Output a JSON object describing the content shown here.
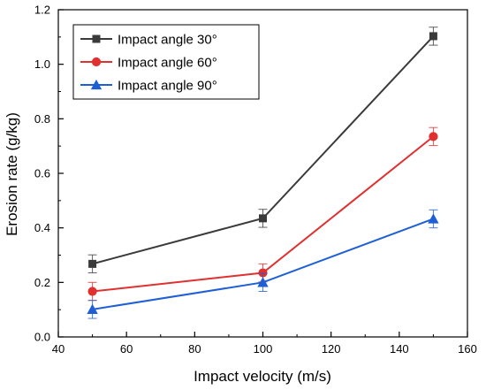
{
  "chart_data": {
    "type": "line",
    "title": "",
    "xlabel": "Impact velocity (m/s)",
    "ylabel": "Erosion rate (g/kg)",
    "xlim": [
      40,
      160
    ],
    "ylim": [
      0.0,
      1.2
    ],
    "xticks": [
      "40",
      "60",
      "80",
      "100",
      "120",
      "140",
      "160"
    ],
    "yticks": [
      "0.0",
      "0.2",
      "0.4",
      "0.6",
      "0.8",
      "1.0",
      "1.2"
    ],
    "grid": false,
    "legend_position": "top-left",
    "x": [
      50,
      100,
      150
    ],
    "series": [
      {
        "name": "Impact angle  30°",
        "color": "#3a3a3a",
        "marker": "square",
        "values": [
          0.268,
          0.435,
          1.103
        ],
        "errors": [
          0.033,
          0.033,
          0.033
        ]
      },
      {
        "name": "Impact angle  60°",
        "color": "#e03030",
        "marker": "circle",
        "values": [
          0.167,
          0.235,
          0.735
        ],
        "errors": [
          0.033,
          0.033,
          0.033
        ]
      },
      {
        "name": "Impact angle  90°",
        "color": "#1f5fd6",
        "marker": "triangle",
        "values": [
          0.101,
          0.2,
          0.433
        ],
        "errors": [
          0.033,
          0.033,
          0.033
        ]
      }
    ]
  }
}
